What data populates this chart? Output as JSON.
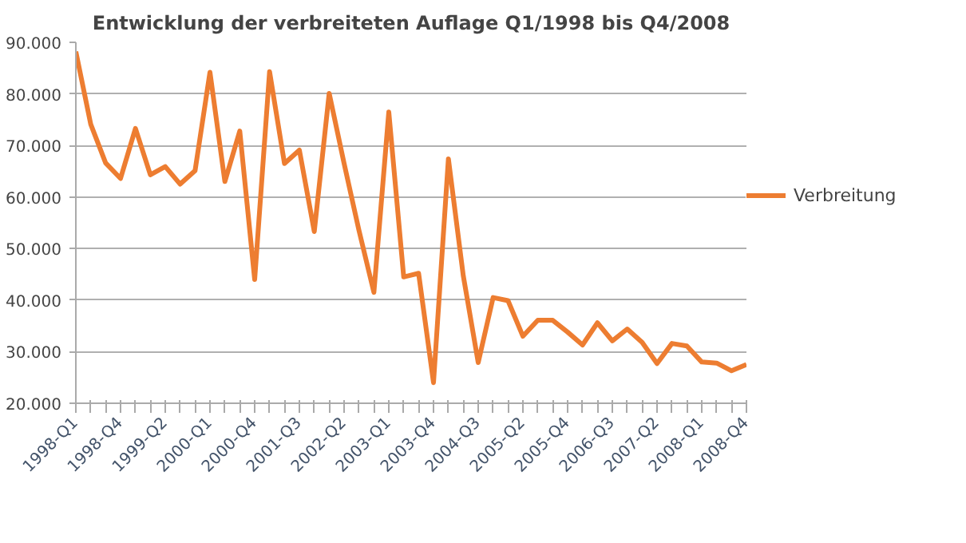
{
  "chart_data": {
    "type": "line",
    "title": "Entwicklung der verbreiteten Auflage Q1/1998 bis Q4/2008",
    "categories": [
      "1998-Q1",
      null,
      null,
      "1998-Q4",
      null,
      null,
      "1999-Q2",
      null,
      null,
      "2000-Q1",
      null,
      null,
      "2000-Q4",
      null,
      null,
      "2001-Q3",
      null,
      null,
      "2002-Q2",
      null,
      null,
      "2003-Q1",
      null,
      null,
      "2003-Q4",
      null,
      null,
      "2004-Q3",
      null,
      null,
      "2005-Q2",
      null,
      null,
      "2005-Q4",
      null,
      null,
      "2006-Q3",
      null,
      null,
      "2007-Q2",
      null,
      null,
      "2008-Q1",
      null,
      null,
      "2008-Q4"
    ],
    "series": [
      {
        "name": "Verbreitung",
        "color": "#ed7d31",
        "values": [
          88200,
          74100,
          66600,
          63600,
          73300,
          64300,
          65900,
          62500,
          65100,
          84200,
          63000,
          72800,
          44000,
          84300,
          66500,
          69100,
          53300,
          80100,
          66500,
          53500,
          41500,
          76500,
          44500,
          45200,
          24000,
          67400,
          44700,
          27900,
          40500,
          39900,
          33000,
          36100,
          36100,
          33800,
          31300,
          35600,
          32100,
          34400,
          31800,
          27700,
          31600,
          31100,
          28000,
          27800,
          26300,
          27500
        ]
      }
    ],
    "ylim": [
      20000,
      90000
    ],
    "yticks": [
      {
        "value": 20000,
        "label": "20.000"
      },
      {
        "value": 30000,
        "label": "30.000"
      },
      {
        "value": 40000,
        "label": "40.000"
      },
      {
        "value": 50000,
        "label": "50.000"
      },
      {
        "value": 60000,
        "label": "60.000"
      },
      {
        "value": 70000,
        "label": "70.000"
      },
      {
        "value": 80000,
        "label": "80.000"
      },
      {
        "value": 90000,
        "label": "90.000"
      }
    ],
    "grid": "y",
    "legend": "right",
    "marker": "none",
    "line_style": "solid"
  }
}
